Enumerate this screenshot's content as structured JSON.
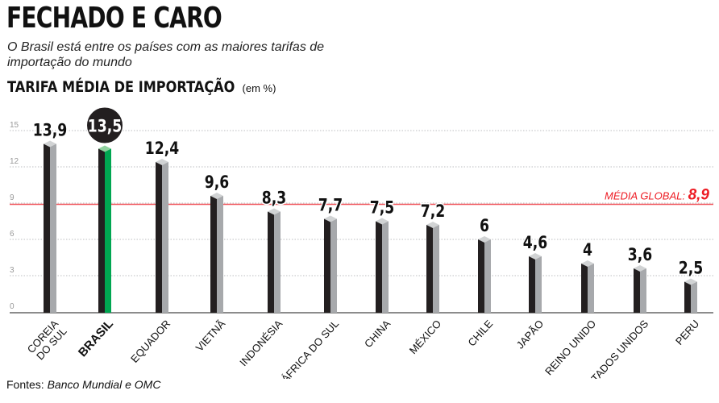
{
  "header": {
    "title": "FECHADO E CARO",
    "subtitle": "O Brasil está entre os países com as maiores tarifas de importação do mundo"
  },
  "chart_data": {
    "type": "bar",
    "title": "TARIFA MÉDIA DE IMPORTAÇÃO",
    "unit": "(em %)",
    "categories": [
      "COREIA DO SUL",
      "BRASIL",
      "EQUADOR",
      "VIETNÃ",
      "INDONÉSIA",
      "ÁFRICA DO SUL",
      "CHINA",
      "MÉXICO",
      "CHILE",
      "JAPÃO",
      "REINO UNIDO",
      "ESTADOS UNIDOS",
      "PERU"
    ],
    "values": [
      13.9,
      13.5,
      12.4,
      9.6,
      8.3,
      7.7,
      7.5,
      7.2,
      6,
      4.6,
      4,
      3.6,
      2.5
    ],
    "value_labels": [
      "13,9",
      "13,5",
      "12,4",
      "9,6",
      "8,3",
      "7,7",
      "7,5",
      "7,2",
      "6",
      "4,6",
      "4",
      "3,6",
      "2,5"
    ],
    "highlight": "BRASIL",
    "yticks": [
      0,
      3,
      6,
      9,
      12,
      15
    ],
    "ylim": [
      0,
      15
    ],
    "grid": true,
    "reference_line": {
      "label": "MÉDIA GLOBAL:",
      "value": 8.9,
      "value_label": "8,9"
    },
    "colors": {
      "bar_front": "#231f20",
      "bar_side": "#a7a9ac",
      "bar_top": "#d1d3d4",
      "highlight_side": "#00a651",
      "highlight_top": "#8fd19e",
      "reference": "#ed1c24",
      "grid": "#bcbec0"
    }
  },
  "footer": {
    "source_label": "Fontes:",
    "source": "Banco Mundial e OMC"
  }
}
